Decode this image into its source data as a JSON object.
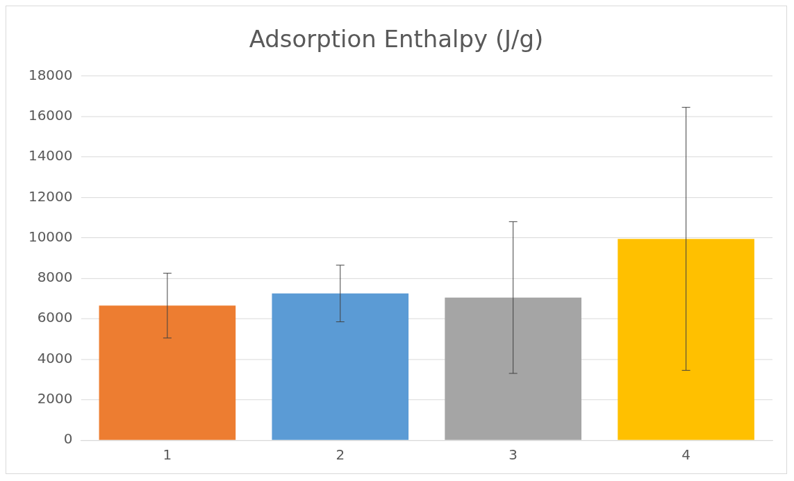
{
  "chart_data": {
    "type": "bar",
    "title": "Adsorption Enthalpy (J/g)",
    "categories": [
      "1",
      "2",
      "3",
      "4"
    ],
    "values": [
      6650,
      7250,
      7050,
      9950
    ],
    "colors": [
      "#ed7d31",
      "#5b9bd5",
      "#a5a5a5",
      "#ffc000"
    ],
    "errors": [
      1600,
      1400,
      3750,
      6500
    ],
    "ylim": [
      0,
      18000
    ],
    "yticks": [
      0,
      2000,
      4000,
      6000,
      8000,
      10000,
      12000,
      14000,
      16000,
      18000
    ],
    "grid": "y",
    "legend": false
  }
}
